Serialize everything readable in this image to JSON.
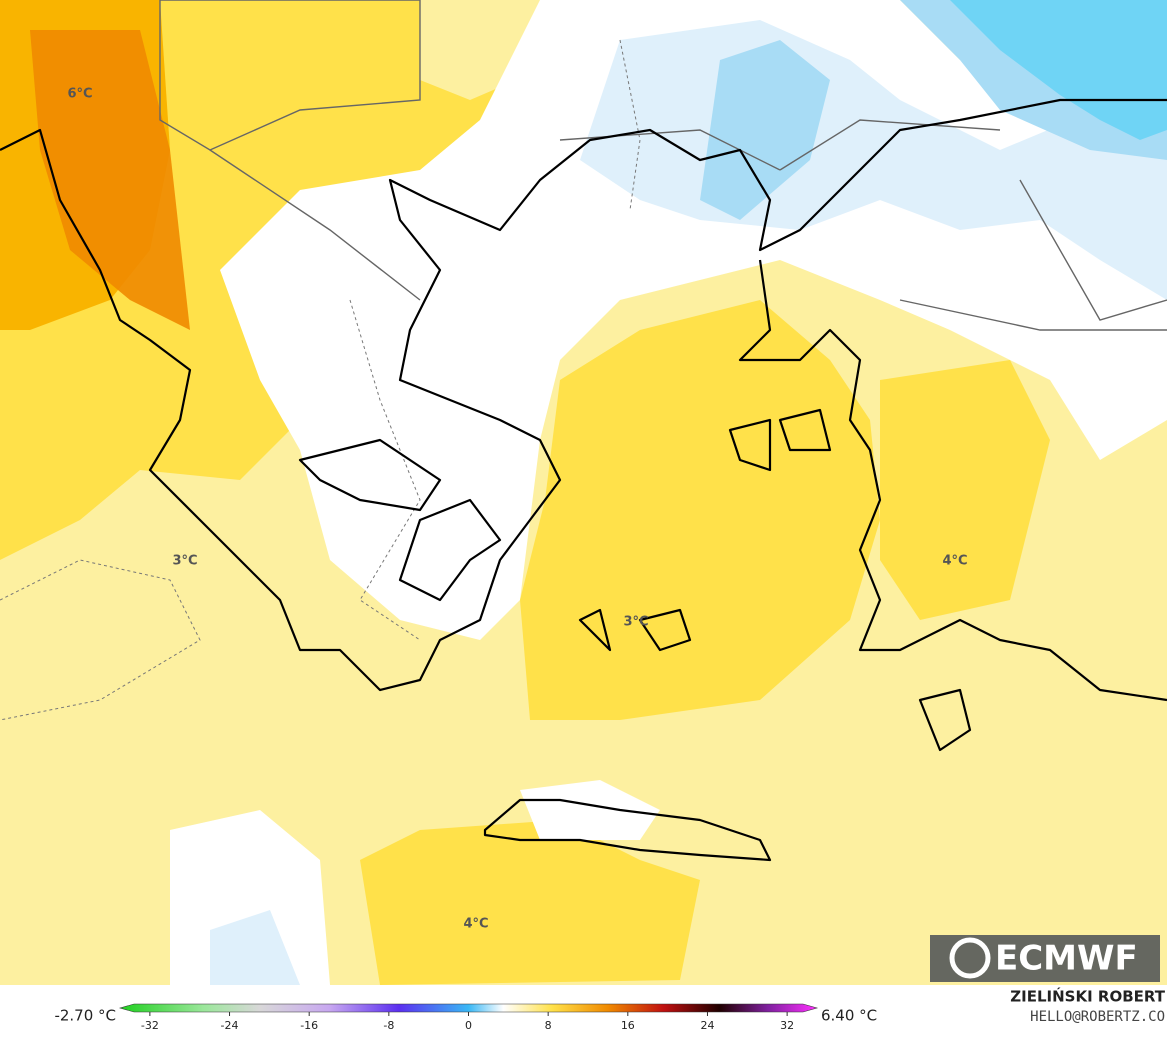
{
  "map": {
    "contour_labels": [
      "6°C",
      "3°C",
      "3°C",
      "4°C",
      "4°C"
    ]
  },
  "logo": "ECMWF",
  "credit": {
    "name": "ZIELIŃSKI ROBERT",
    "contact": "HELLO@ROBERTZ.CO"
  },
  "colorbar": {
    "min_label": "-2.70 °C",
    "max_label": "6.40 °C",
    "limits": [
      -35,
      35
    ],
    "ticks": [
      -32,
      -24,
      -16,
      -8,
      0,
      8,
      16,
      24,
      32
    ]
  }
}
